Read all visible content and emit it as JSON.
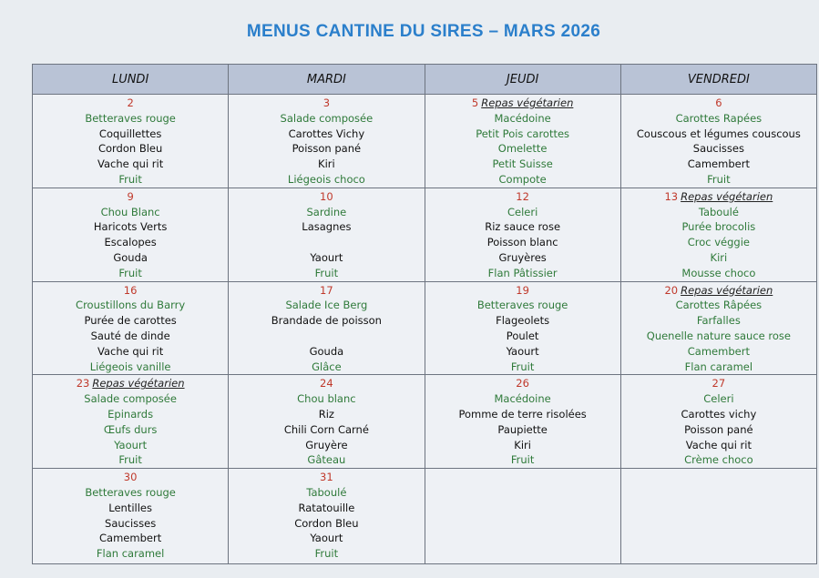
{
  "header": {
    "title": "MENUS CANTINE DU SIRES – MARS 2026"
  },
  "table": {
    "columns": [
      "LUNDI",
      "MARDI",
      "JEUDI",
      "VENDREDI"
    ],
    "rows": [
      [
        {
          "day": "2",
          "note": null,
          "items": [
            {
              "text": "Betteraves rouge",
              "color": "#2f7a3a"
            },
            {
              "text": "Coquillettes",
              "color": "#111"
            },
            {
              "text": "Cordon Bleu",
              "color": "#111"
            },
            {
              "text": "Vache qui rit",
              "color": "#111"
            },
            {
              "text": "Fruit",
              "color": "#2f7a3a"
            }
          ]
        },
        {
          "day": "3",
          "note": null,
          "items": [
            {
              "text": "Salade composée",
              "color": "#2f7a3a"
            },
            {
              "text": "Carottes Vichy",
              "color": "#111"
            },
            {
              "text": "Poisson pané",
              "color": "#111"
            },
            {
              "text": "Kiri",
              "color": "#111"
            },
            {
              "text": "Liégeois choco",
              "color": "#2f7a3a"
            }
          ]
        },
        {
          "day": "5",
          "note": "Repas végétarien",
          "items": [
            {
              "text": "Macédoine",
              "color": "#2f7a3a"
            },
            {
              "text": "Petit Pois carottes",
              "color": "#2f7a3a"
            },
            {
              "text": "Omelette",
              "color": "#2f7a3a"
            },
            {
              "text": "Petit Suisse",
              "color": "#2f7a3a"
            },
            {
              "text": "Compote",
              "color": "#2f7a3a"
            }
          ]
        },
        {
          "day": "6",
          "note": null,
          "items": [
            {
              "text": "Carottes Rapées",
              "color": "#2f7a3a"
            },
            {
              "text": "Couscous et légumes couscous",
              "color": "#111"
            },
            {
              "text": "Saucisses",
              "color": "#111"
            },
            {
              "text": "Camembert",
              "color": "#111"
            },
            {
              "text": "Fruit",
              "color": "#2f7a3a"
            }
          ]
        }
      ],
      [
        {
          "day": "9",
          "note": null,
          "items": [
            {
              "text": "Chou Blanc",
              "color": "#2f7a3a"
            },
            {
              "text": "Haricots Verts",
              "color": "#111"
            },
            {
              "text": "Escalopes",
              "color": "#111"
            },
            {
              "text": "Gouda",
              "color": "#111"
            },
            {
              "text": "Fruit",
              "color": "#2f7a3a"
            }
          ]
        },
        {
          "day": "10",
          "note": null,
          "items": [
            {
              "text": "Sardine",
              "color": "#2f7a3a"
            },
            {
              "text": "Lasagnes",
              "color": "#111"
            },
            null,
            {
              "text": "Yaourt",
              "color": "#111"
            },
            {
              "text": "Fruit",
              "color": "#2f7a3a"
            }
          ]
        },
        {
          "day": "12",
          "note": null,
          "items": [
            {
              "text": "Celeri",
              "color": "#2f7a3a"
            },
            {
              "text": "Riz sauce rose",
              "color": "#111"
            },
            {
              "text": "Poisson blanc",
              "color": "#111"
            },
            {
              "text": "Gruyères",
              "color": "#111"
            },
            {
              "text": "Flan Pâtissier",
              "color": "#2f7a3a"
            }
          ]
        },
        {
          "day": "13",
          "note": "Repas végétarien",
          "items": [
            {
              "text": "Taboulé",
              "color": "#2f7a3a"
            },
            {
              "text": "Purée brocolis",
              "color": "#2f7a3a"
            },
            {
              "text": "Croc véggie",
              "color": "#2f7a3a"
            },
            {
              "text": "Kiri",
              "color": "#2f7a3a"
            },
            {
              "text": "Mousse choco",
              "color": "#2f7a3a"
            }
          ]
        }
      ],
      [
        {
          "day": "16",
          "note": null,
          "items": [
            {
              "text": "Croustillons du Barry",
              "color": "#2f7a3a"
            },
            {
              "text": "Purée de carottes",
              "color": "#111"
            },
            {
              "text": "Sauté de dinde",
              "color": "#111"
            },
            {
              "text": "Vache qui rit",
              "color": "#111"
            },
            {
              "text": "Liégeois vanille",
              "color": "#2f7a3a"
            }
          ]
        },
        {
          "day": "17",
          "note": null,
          "items": [
            {
              "text": "Salade Ice Berg",
              "color": "#2f7a3a"
            },
            {
              "text": "Brandade de poisson",
              "color": "#111"
            },
            null,
            {
              "text": "Gouda",
              "color": "#111"
            },
            {
              "text": "Glâce",
              "color": "#2f7a3a"
            }
          ]
        },
        {
          "day": "19",
          "note": null,
          "items": [
            {
              "text": "Betteraves rouge",
              "color": "#2f7a3a"
            },
            {
              "text": "Flageolets",
              "color": "#111"
            },
            {
              "text": "Poulet",
              "color": "#111"
            },
            {
              "text": "Yaourt",
              "color": "#111"
            },
            {
              "text": "Fruit",
              "color": "#2f7a3a"
            }
          ]
        },
        {
          "day": "20",
          "note": "Repas végétarien",
          "items": [
            {
              "text": "Carottes Râpées",
              "color": "#2f7a3a"
            },
            {
              "text": "Farfalles",
              "color": "#2f7a3a"
            },
            {
              "text": "Quenelle nature sauce rose",
              "color": "#2f7a3a"
            },
            {
              "text": "Camembert",
              "color": "#2f7a3a"
            },
            {
              "text": "Flan caramel",
              "color": "#2f7a3a"
            }
          ]
        }
      ],
      [
        {
          "day": "23",
          "note": "Repas végétarien",
          "items": [
            {
              "text": "Salade composée",
              "color": "#2f7a3a"
            },
            {
              "text": "Epinards",
              "color": "#2f7a3a"
            },
            {
              "text": "Œufs durs",
              "color": "#2f7a3a"
            },
            {
              "text": "Yaourt",
              "color": "#2f7a3a"
            },
            {
              "text": "Fruit",
              "color": "#2f7a3a"
            }
          ]
        },
        {
          "day": "24",
          "note": null,
          "items": [
            {
              "text": "Chou blanc",
              "color": "#2f7a3a"
            },
            {
              "text": "Riz",
              "color": "#111"
            },
            {
              "text": "Chili Corn Carné",
              "color": "#111"
            },
            {
              "text": "Gruyère",
              "color": "#111"
            },
            {
              "text": "Gâteau",
              "color": "#2f7a3a"
            }
          ]
        },
        {
          "day": "26",
          "note": null,
          "items": [
            {
              "text": "Macédoine",
              "color": "#2f7a3a"
            },
            {
              "text": "Pomme de terre risolées",
              "color": "#111"
            },
            {
              "text": "Paupiette",
              "color": "#111"
            },
            {
              "text": "Kiri",
              "color": "#111"
            },
            {
              "text": "Fruit",
              "color": "#2f7a3a"
            }
          ]
        },
        {
          "day": "27",
          "note": null,
          "items": [
            {
              "text": "Celeri",
              "color": "#2f7a3a"
            },
            {
              "text": "Carottes vichy",
              "color": "#111"
            },
            {
              "text": "Poisson pané",
              "color": "#111"
            },
            {
              "text": "Vache qui rit",
              "color": "#111"
            },
            {
              "text": "Crème choco",
              "color": "#2f7a3a"
            }
          ]
        }
      ],
      [
        {
          "day": "30",
          "note": null,
          "items": [
            {
              "text": "Betteraves rouge",
              "color": "#2f7a3a"
            },
            {
              "text": "Lentilles",
              "color": "#111"
            },
            {
              "text": "Saucisses",
              "color": "#111"
            },
            {
              "text": "Camembert",
              "color": "#111"
            },
            {
              "text": "Flan caramel",
              "color": "#2f7a3a"
            }
          ]
        },
        {
          "day": "31",
          "note": null,
          "items": [
            {
              "text": "Taboulé",
              "color": "#2f7a3a"
            },
            {
              "text": "Ratatouille",
              "color": "#111"
            },
            {
              "text": "Cordon Bleu",
              "color": "#111"
            },
            {
              "text": "Yaourt",
              "color": "#111"
            },
            {
              "text": "Fruit",
              "color": "#2f7a3a"
            }
          ]
        },
        null,
        null
      ]
    ]
  }
}
